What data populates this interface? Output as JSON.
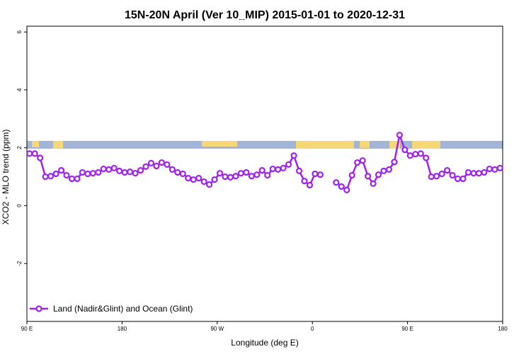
{
  "chart_data": {
    "type": "line",
    "title": "15N-20N April (Ver 10_MIP)   2015-01-01 to 2020-12-31",
    "x_label": "Longitude (deg E)",
    "y_label": "XCO2 - MLO trend (ppm)",
    "x": [
      92.5,
      97.5,
      102.5,
      107.5,
      112.5,
      117.5,
      122.5,
      127.5,
      132.5,
      137.5,
      142.5,
      147.5,
      152.5,
      157.5,
      162.5,
      167.5,
      172.5,
      177.5,
      182.5,
      187.5,
      192.5,
      197.5,
      202.5,
      207.5,
      212.5,
      217.5,
      222.5,
      227.5,
      232.5,
      237.5,
      242.5,
      247.5,
      252.5,
      257.5,
      262.5,
      267.5,
      272.5,
      277.5,
      282.5,
      287.5,
      292.5,
      297.5,
      302.5,
      307.5,
      312.5,
      317.5,
      322.5,
      327.5,
      332.5,
      337.5,
      342.5,
      347.5,
      352.5,
      357.5,
      362.5,
      367.5,
      372.5,
      377.5,
      382.5,
      387.5,
      392.5,
      397.5,
      402.5,
      407.5,
      412.5,
      417.5,
      422.5,
      427.5,
      432.5,
      437.5,
      442.5,
      447.5,
      452.5,
      457.5,
      462.5,
      467.5,
      472.5,
      477.5,
      482.5,
      487.5,
      492.5,
      497.5,
      502.5,
      507.5,
      512.5,
      517.5,
      522.5,
      527.5,
      532.5,
      537.5
    ],
    "series": [
      {
        "name": "Land (Nadir&Glint) and Ocean (Glint)",
        "color": "#a020f0",
        "values": [
          1.8,
          1.8,
          1.65,
          1.0,
          1.02,
          1.1,
          1.22,
          1.05,
          0.93,
          0.93,
          1.15,
          1.1,
          1.12,
          1.15,
          1.27,
          1.25,
          1.3,
          1.2,
          1.15,
          1.17,
          1.12,
          1.22,
          1.35,
          1.47,
          1.37,
          1.49,
          1.42,
          1.25,
          1.15,
          1.1,
          0.95,
          0.9,
          0.95,
          0.83,
          0.73,
          0.9,
          1.12,
          1.0,
          0.98,
          1.02,
          1.12,
          1.15,
          1.02,
          1.07,
          1.22,
          1.05,
          1.27,
          1.25,
          1.3,
          1.42,
          1.73,
          1.2,
          0.85,
          0.71,
          1.1,
          1.07,
          null,
          null,
          0.8,
          0.66,
          0.54,
          1.05,
          1.49,
          1.56,
          1.02,
          0.76,
          1.07,
          1.2,
          1.25,
          1.51,
          2.44,
          1.93,
          1.73,
          1.78,
          1.8,
          1.65,
          1.0,
          1.02,
          1.1,
          1.22,
          1.05,
          0.93,
          0.93,
          1.15,
          1.12,
          1.12,
          1.15,
          1.27,
          1.25,
          1.3
        ]
      }
    ],
    "xlim": [
      90,
      540
    ],
    "xticks": [
      {
        "value": 90,
        "label": "90 E"
      },
      180,
      {
        "value": 270,
        "label": "90 W"
      },
      {
        "value": 360,
        "label": "0"
      },
      {
        "value": 450,
        "label": "90 E"
      },
      {
        "value": 540,
        "label": "180"
      }
    ],
    "ylim": [
      -4,
      6.2
    ],
    "yticks": [
      -2,
      0,
      2,
      4,
      6
    ],
    "legend": "bottom-left"
  }
}
